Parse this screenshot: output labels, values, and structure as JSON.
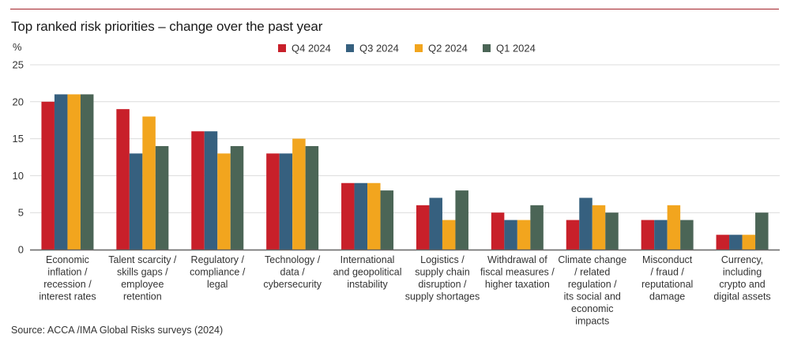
{
  "header": {
    "title": "Top ranked risk priorities – change over the past year"
  },
  "footer": {
    "source": "Source: ACCA /IMA Global Risks surveys (2024)"
  },
  "chart_data": {
    "type": "bar",
    "title": "Top ranked risk priorities – change over the past year",
    "xlabel": "",
    "ylabel": "%",
    "ylim": [
      0,
      25
    ],
    "yticks": [
      0,
      5,
      10,
      15,
      20,
      25
    ],
    "grid": true,
    "legend_position": "top-right",
    "categories": [
      [
        "Economic",
        "inflation /",
        "recession /",
        "interest rates"
      ],
      [
        "Talent scarcity /",
        "skills gaps /",
        "employee",
        "retention"
      ],
      [
        "Regulatory /",
        "compliance /",
        "legal"
      ],
      [
        "Technology /",
        "data /",
        "cybersecurity"
      ],
      [
        "International",
        "and geopolitical",
        "instability"
      ],
      [
        "Logistics /",
        "supply chain",
        "disruption /",
        "supply shortages"
      ],
      [
        "Withdrawal of",
        "fiscal measures /",
        "higher taxation"
      ],
      [
        "Climate change",
        "/ related",
        "regulation /",
        "its social and",
        "economic",
        "impacts"
      ],
      [
        "Misconduct",
        "/ fraud /",
        "reputational",
        "damage"
      ],
      [
        "Currency,",
        "including",
        "crypto and",
        "digital assets"
      ]
    ],
    "series": [
      {
        "name": "Q4 2024",
        "color": "#c8202a",
        "values": [
          20,
          19,
          16,
          13,
          9,
          6,
          5,
          4,
          4,
          2
        ]
      },
      {
        "name": "Q3 2024",
        "color": "#36607f",
        "values": [
          21,
          13,
          16,
          13,
          9,
          7,
          4,
          7,
          4,
          2
        ]
      },
      {
        "name": "Q2 2024",
        "color": "#f2a51e",
        "values": [
          21,
          18,
          13,
          15,
          9,
          4,
          4,
          6,
          6,
          2
        ]
      },
      {
        "name": "Q1 2024",
        "color": "#4b6556",
        "values": [
          21,
          14,
          14,
          14,
          8,
          8,
          6,
          5,
          4,
          5
        ]
      }
    ]
  }
}
